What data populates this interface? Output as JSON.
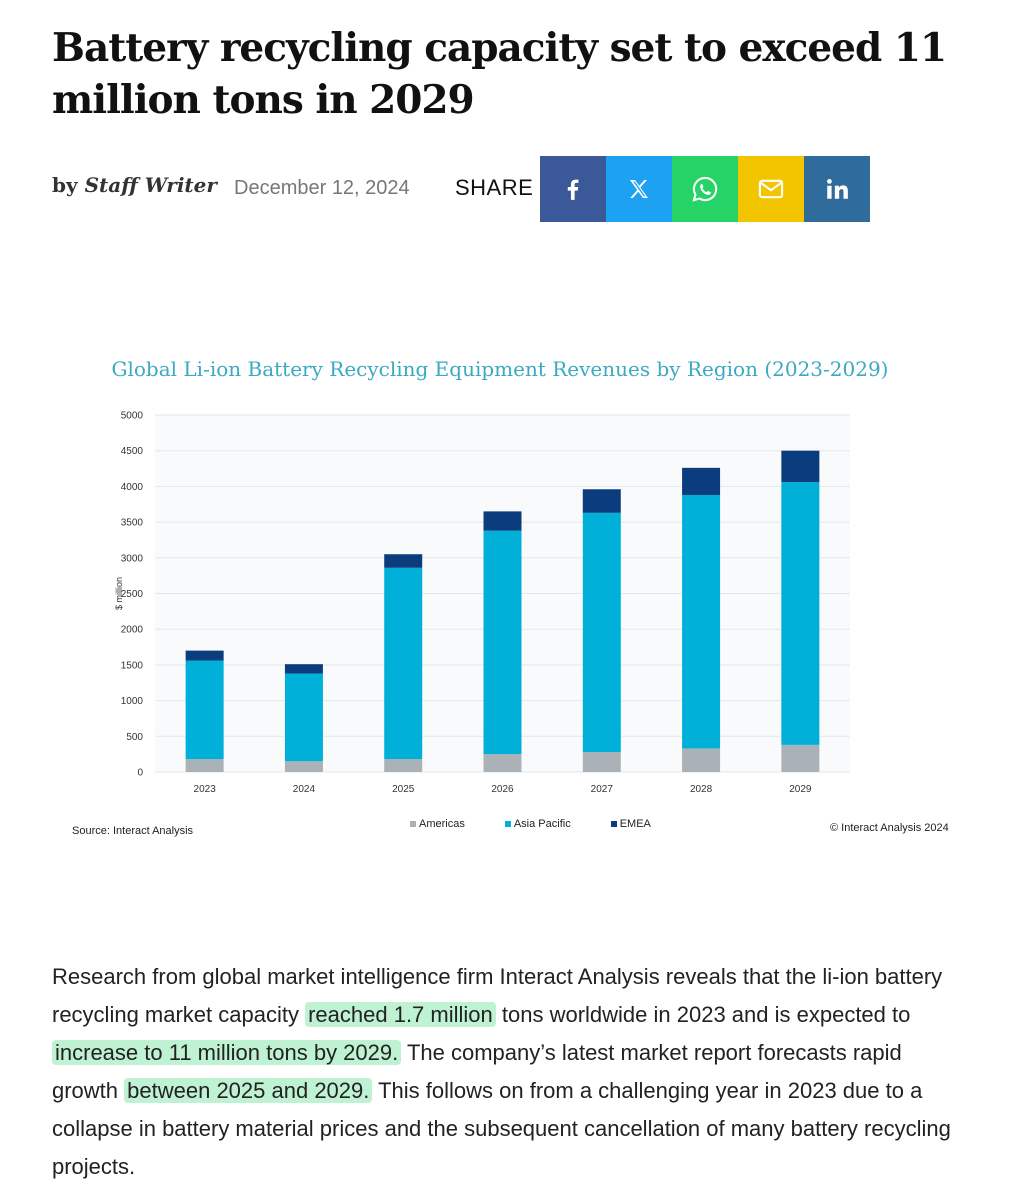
{
  "article": {
    "headline": "Battery recycling capacity set to exceed 11 million tons in 2029",
    "byline_prefix": "by ",
    "author": "Staff Writer",
    "date": "December 12, 2024",
    "share_label": "SHARE",
    "share_buttons": [
      {
        "name": "facebook",
        "icon": "facebook-icon",
        "color": "#3b5998"
      },
      {
        "name": "x",
        "icon": "x-icon",
        "color": "#1da1f2"
      },
      {
        "name": "whatsapp",
        "icon": "whatsapp-icon",
        "color": "#25d366"
      },
      {
        "name": "email",
        "icon": "mail-icon",
        "color": "#f2c500"
      },
      {
        "name": "linkedin",
        "icon": "linkedin-icon",
        "color": "#2f6c9c"
      }
    ],
    "body": {
      "p1": "Research from global market intelligence firm Interact Analysis reveals that the li-ion battery recycling market capacity ",
      "hl1": "reached 1.7 million",
      "p2": " tons worldwide in 2023 and is expected to ",
      "hl2": "increase to 11 million tons by 2029.",
      "p3": " The company’s latest market report forecasts rapid growth ",
      "hl3": "between 2025 and 2029.",
      "p4": " This follows on from a challenging year in 2023 due to a collapse in battery material prices and the subsequent cancellation of many battery recycling projects."
    }
  },
  "chart_data": {
    "type": "bar",
    "stacked": true,
    "title": "Global Li-ion Battery Recycling Equipment Revenues by Region (2023-2029)",
    "ylabel": "$ million",
    "xlabel": "",
    "ylim": [
      0,
      5000
    ],
    "yticks": [
      0,
      500,
      1000,
      1500,
      2000,
      2500,
      3000,
      3500,
      4000,
      4500,
      5000
    ],
    "grid": true,
    "legend_position": "bottom",
    "categories": [
      "2023",
      "2024",
      "2025",
      "2026",
      "2027",
      "2028",
      "2029"
    ],
    "series": [
      {
        "name": "Americas",
        "color": "#aab2b8",
        "values": [
          180,
          150,
          180,
          250,
          280,
          330,
          380
        ]
      },
      {
        "name": "Asia Pacific",
        "color": "#00b0d8",
        "values": [
          1380,
          1230,
          2680,
          3130,
          3350,
          3550,
          3680
        ]
      },
      {
        "name": "EMEA",
        "color": "#0b3d7e",
        "values": [
          140,
          130,
          190,
          270,
          330,
          380,
          440
        ]
      }
    ],
    "source": "Source: Interact Analysis",
    "copyright": "© Interact Analysis 2024"
  }
}
